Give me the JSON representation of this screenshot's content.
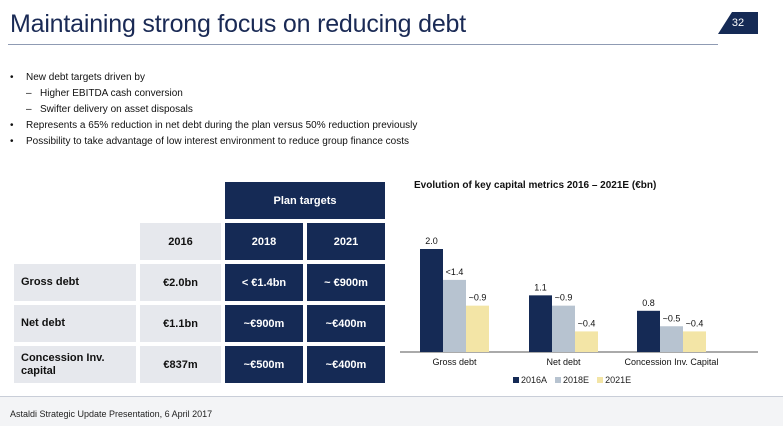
{
  "title": "Maintaining strong focus on reducing debt",
  "page_number": "32",
  "bullets": [
    {
      "text": "New debt targets driven by",
      "sub": [
        "Higher EBITDA cash conversion",
        "Swifter delivery on asset disposals"
      ]
    },
    {
      "text": "Represents a 65% reduction in net debt during the plan versus 50% reduction previously",
      "sub": []
    },
    {
      "text": "Possibility to take advantage of low interest environment to reduce group finance costs",
      "sub": []
    }
  ],
  "table": {
    "plan_header": "Plan targets",
    "columns": [
      "2016",
      "2018",
      "2021"
    ],
    "rows": [
      {
        "label": "Gross debt",
        "values": [
          "€2.0bn",
          "< €1.4bn",
          "~ €900m"
        ]
      },
      {
        "label": "Net debt",
        "values": [
          "€1.1bn",
          "~€900m",
          "~€400m"
        ]
      },
      {
        "label": "Concession Inv. capital",
        "values": [
          "€837m",
          "~€500m",
          "~€400m"
        ]
      }
    ]
  },
  "colors": {
    "navy": "#152a55",
    "steel": "#b7c3d0",
    "cream": "#f3e5a6"
  },
  "chart_data": {
    "type": "bar",
    "title": "Evolution of key capital metrics 2016 – 2021E (€bn)",
    "categories": [
      "Gross debt",
      "Net debt",
      "Concession Inv. Capital"
    ],
    "series": [
      {
        "name": "2016A",
        "values": [
          2.0,
          1.1,
          0.8
        ],
        "labels": [
          "2.0",
          "1.1",
          "0.8"
        ],
        "color": "#152a55"
      },
      {
        "name": "2018E",
        "values": [
          1.4,
          0.9,
          0.5
        ],
        "labels": [
          "<1.4",
          "~0.9",
          "~0.5"
        ],
        "color": "#b7c3d0"
      },
      {
        "name": "2021E",
        "values": [
          0.9,
          0.4,
          0.4
        ],
        "labels": [
          "~0.9",
          "~0.4",
          "~0.4"
        ],
        "color": "#f3e5a6"
      }
    ],
    "ylim": [
      0,
      2.0
    ],
    "legend_position": "bottom",
    "grid": false
  },
  "footer": "Astaldi Strategic Update Presentation, 6 April 2017"
}
